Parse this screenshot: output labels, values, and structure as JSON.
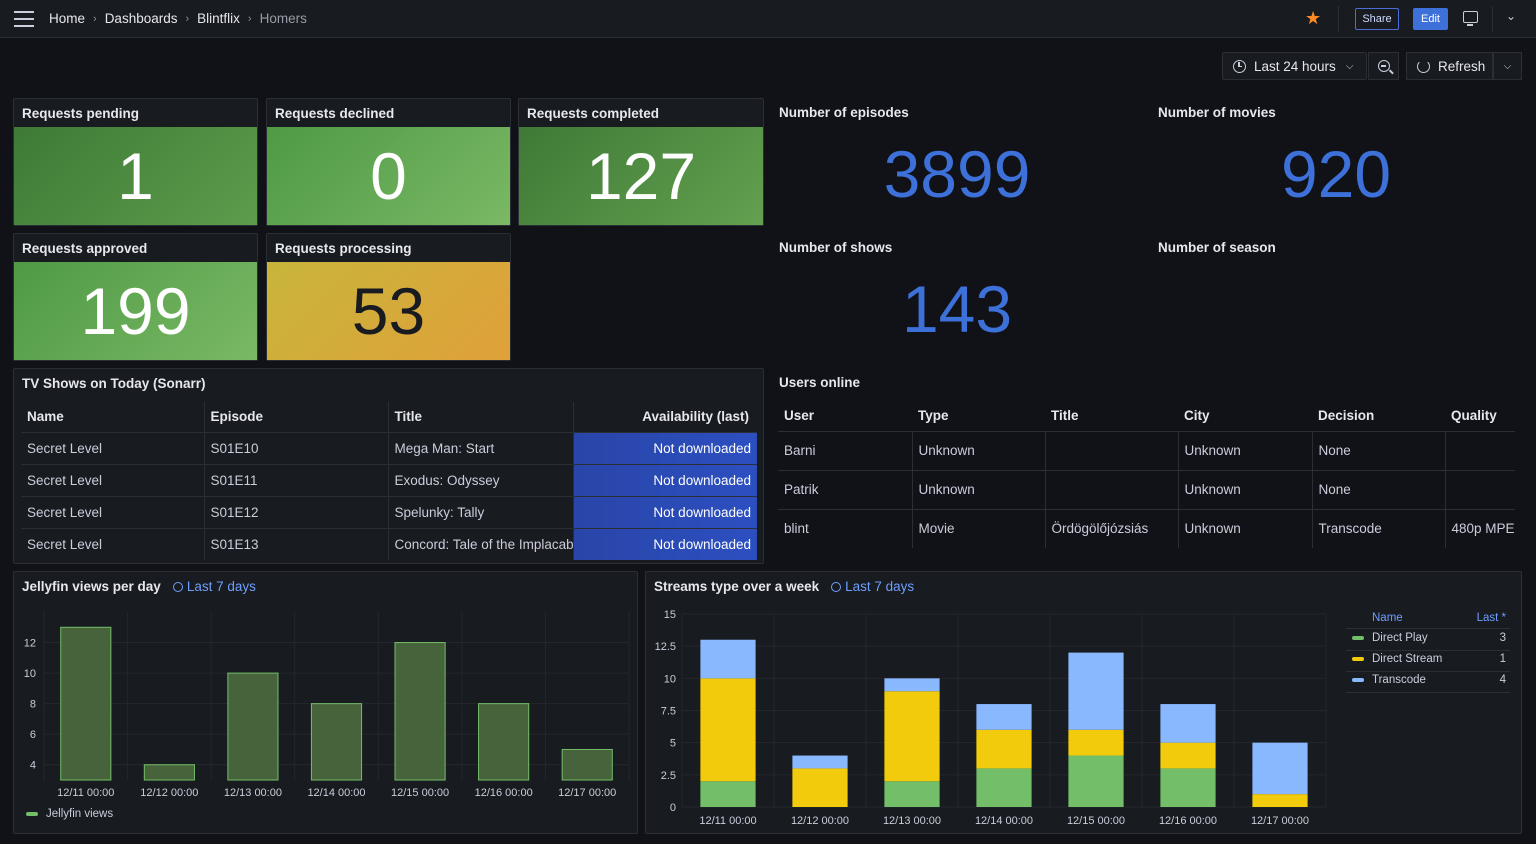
{
  "nav": {
    "breadcrumbs": [
      "Home",
      "Dashboards",
      "Blintflix",
      "Homers"
    ],
    "share_label": "Share",
    "edit_label": "Edit"
  },
  "toolbar": {
    "time_range": "Last 24 hours",
    "refresh_label": "Refresh"
  },
  "stats": {
    "pending": {
      "title": "Requests pending",
      "value": "1"
    },
    "declined": {
      "title": "Requests declined",
      "value": "0"
    },
    "completed": {
      "title": "Requests completed",
      "value": "127"
    },
    "approved": {
      "title": "Requests approved",
      "value": "199"
    },
    "processing": {
      "title": "Requests processing",
      "value": "53"
    },
    "episodes": {
      "title": "Number of episodes",
      "value": "3899"
    },
    "movies": {
      "title": "Number of movies",
      "value": "920"
    },
    "shows": {
      "title": "Number of shows",
      "value": "143"
    },
    "season": {
      "title": "Number of season"
    }
  },
  "colors": {
    "stat_green_dark": "#4a8a3e",
    "stat_green_light": "#73bf69",
    "stat_orange": "#e0a03a",
    "stat_yellow": "#c8b53a",
    "blue_value": "#3d71d9",
    "series_green": "#73bf69",
    "series_yellow": "#f2cc0c",
    "series_blue": "#8ab8ff",
    "jellyfin_bar": "#4b6b3e"
  },
  "tv_shows": {
    "title": "TV Shows on Today (Sonarr)",
    "columns": [
      "Name",
      "Episode",
      "Title",
      "Availability (last)"
    ],
    "rows": [
      [
        "Secret Level",
        "S01E10",
        "Mega Man: Start",
        "Not downloaded"
      ],
      [
        "Secret Level",
        "S01E11",
        "Exodus: Odyssey",
        "Not downloaded"
      ],
      [
        "Secret Level",
        "S01E12",
        "Spelunky: Tally",
        "Not downloaded"
      ],
      [
        "Secret Level",
        "S01E13",
        "Concord: Tale of the Implacab",
        "Not downloaded"
      ]
    ]
  },
  "users_online": {
    "title": "Users online",
    "columns": [
      "User",
      "Type",
      "Title",
      "City",
      "Decision",
      "Quality"
    ],
    "rows": [
      [
        "Barni",
        "Unknown",
        "",
        "Unknown",
        "None",
        ""
      ],
      [
        "Patrik",
        "Unknown",
        "",
        "Unknown",
        "None",
        ""
      ],
      [
        "blint",
        "Movie",
        "Ördögölőjózsiás",
        "Unknown",
        "Transcode",
        "480p MPE"
      ]
    ]
  },
  "jellyfin": {
    "title": "Jellyfin views per day",
    "time_info": "Last 7 days",
    "legend": "Jellyfin views"
  },
  "streams": {
    "title": "Streams type over a week",
    "time_info": "Last 7 days",
    "legend_name_header": "Name",
    "legend_last_header": "Last *",
    "legend": [
      {
        "name": "Direct Play",
        "last": "3",
        "color": "#73bf69"
      },
      {
        "name": "Direct Stream",
        "last": "1",
        "color": "#f2cc0c"
      },
      {
        "name": "Transcode",
        "last": "4",
        "color": "#8ab8ff"
      }
    ]
  },
  "chart_data": [
    {
      "type": "bar",
      "title": "Jellyfin views per day",
      "categories": [
        "12/11 00:00",
        "12/12 00:00",
        "12/13 00:00",
        "12/14 00:00",
        "12/15 00:00",
        "12/16 00:00",
        "12/17 00:00"
      ],
      "series": [
        {
          "name": "Jellyfin views",
          "values": [
            13,
            4,
            10,
            8,
            12,
            8,
            5
          ]
        }
      ],
      "yticks": [
        4,
        6,
        8,
        10,
        12
      ],
      "ylim": [
        3,
        14
      ],
      "grid": true,
      "legend": "bottom-left"
    },
    {
      "type": "bar",
      "stacked": true,
      "title": "Streams type over a week",
      "categories": [
        "12/11 00:00",
        "12/12 00:00",
        "12/13 00:00",
        "12/14 00:00",
        "12/15 00:00",
        "12/16 00:00",
        "12/17 00:00"
      ],
      "series": [
        {
          "name": "Direct Play",
          "values": [
            2,
            0,
            2,
            3,
            4,
            3,
            0
          ]
        },
        {
          "name": "Direct Stream",
          "values": [
            8,
            3,
            7,
            3,
            2,
            2,
            1
          ]
        },
        {
          "name": "Transcode",
          "values": [
            3,
            1,
            1,
            2,
            6,
            3,
            4
          ]
        }
      ],
      "yticks": [
        "0",
        "2.5",
        "5",
        "7.5",
        "10",
        "12.5",
        "15"
      ],
      "ylim": [
        0,
        15
      ],
      "grid": true,
      "legend": "right"
    }
  ]
}
